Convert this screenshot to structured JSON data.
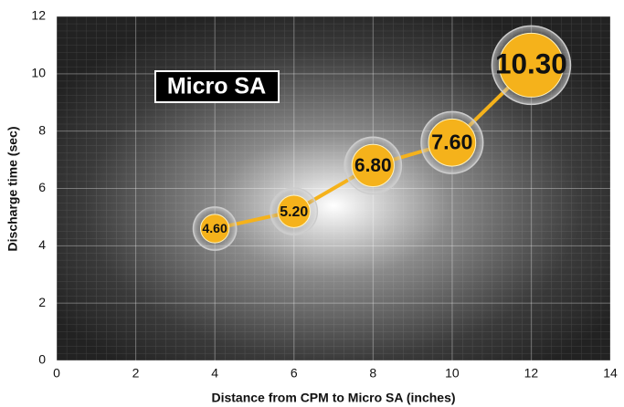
{
  "chart_data": {
    "type": "line",
    "annotation": "Micro SA",
    "x_label": "Distance from CPM to Micro SA (inches)",
    "y_label": "Discharge time (sec)",
    "x": [
      4,
      6,
      8,
      10,
      12
    ],
    "series": [
      {
        "color": "#f5b21b",
        "values": [
          4.6,
          5.2,
          6.8,
          7.6,
          10.3
        ],
        "value_labels": [
          "4.60",
          "5.20",
          "6.80",
          "7.60",
          "10.30"
        ]
      }
    ],
    "xlim": [
      0,
      14
    ],
    "xticks": [
      0,
      2,
      4,
      6,
      8,
      10,
      12,
      14
    ],
    "ylim": [
      0,
      12
    ],
    "yticks": [
      0,
      2,
      4,
      6,
      8,
      10,
      12
    ],
    "grid": true
  }
}
